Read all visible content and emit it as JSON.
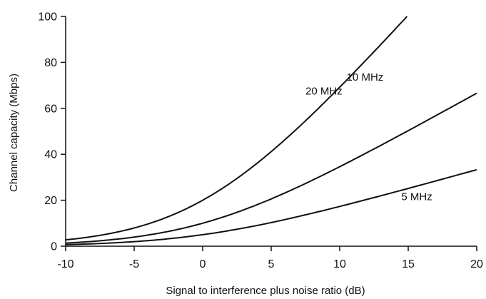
{
  "chart_data": {
    "type": "line",
    "xlabel": "Signal to interference plus noise ratio (dB)",
    "ylabel": "Channel capacity (Mbps)",
    "xlim": [
      -10,
      20
    ],
    "ylim": [
      0,
      100
    ],
    "xticks": [
      -10,
      -5,
      0,
      5,
      10,
      15,
      20
    ],
    "yticks": [
      0,
      20,
      40,
      60,
      80,
      100
    ],
    "grid": false,
    "legend": "none",
    "line_color": "#111111",
    "x": [
      -10,
      -7.5,
      -5,
      -2.5,
      0,
      2.5,
      5,
      7.5,
      10,
      12.5,
      15,
      17.5,
      20
    ],
    "series": [
      {
        "name": "20 MHz",
        "values": [
          2.75,
          4.7,
          7.8,
          12.4,
          20.0,
          29.2,
          41.1,
          55.0,
          69.2,
          84.8,
          100.4,
          null,
          null
        ]
      },
      {
        "name": "10 MHz",
        "values": [
          1.38,
          2.35,
          3.9,
          6.2,
          10.0,
          14.6,
          20.6,
          27.5,
          34.6,
          42.4,
          50.2,
          58.1,
          66.6
        ]
      },
      {
        "name": "5 MHz",
        "values": [
          0.69,
          1.18,
          1.95,
          3.1,
          5.0,
          7.3,
          10.3,
          13.8,
          17.3,
          21.2,
          25.1,
          29.1,
          33.3
        ]
      }
    ]
  }
}
